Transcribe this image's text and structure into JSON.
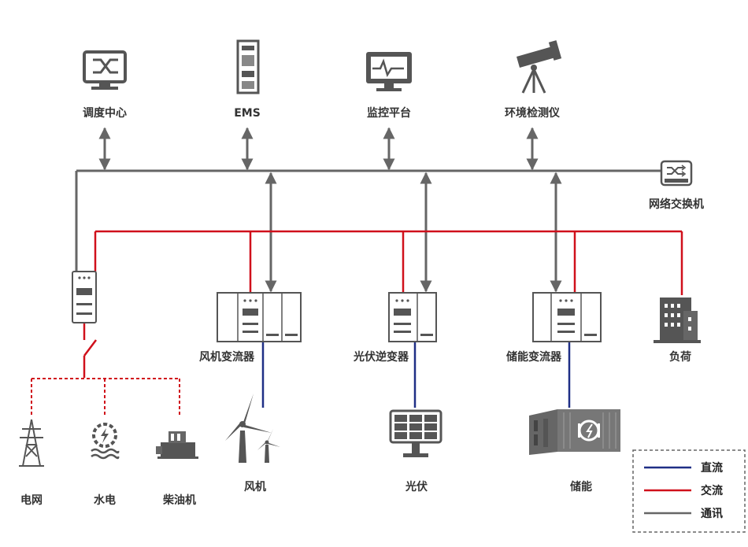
{
  "colors": {
    "dc": "#1f2f86",
    "ac": "#d0101b",
    "comm": "#666666"
  },
  "top_nodes": [
    {
      "label": "调度中心",
      "icon": "monitor-network-icon"
    },
    {
      "label": "EMS",
      "icon": "server-cabinet-icon"
    },
    {
      "label": "监控平台",
      "icon": "monitor-pulse-icon"
    },
    {
      "label": "环境检测仪",
      "icon": "telescope-icon"
    }
  ],
  "switch": {
    "label": "网络交换机",
    "icon": "network-switch-icon"
  },
  "converters": [
    {
      "label": "风机变流器",
      "icon": "converter-cabinet-icon"
    },
    {
      "label": "光伏逆变器",
      "icon": "inverter-cabinet-icon"
    },
    {
      "label": "储能变流器",
      "icon": "converter-cabinet-icon"
    }
  ],
  "load": {
    "label": "负荷",
    "icon": "building-icon"
  },
  "sources": [
    {
      "label": "电网",
      "icon": "transmission-tower-icon"
    },
    {
      "label": "水电",
      "icon": "hydro-turbine-icon"
    },
    {
      "label": "柴油机",
      "icon": "diesel-generator-icon"
    }
  ],
  "generation": [
    {
      "label": "风机",
      "icon": "wind-turbine-icon"
    },
    {
      "label": "光伏",
      "icon": "solar-panel-icon"
    },
    {
      "label": "储能",
      "icon": "battery-container-icon"
    }
  ],
  "legend": [
    {
      "label": "直流",
      "color": "#1f2f86"
    },
    {
      "label": "交流",
      "color": "#d0101b"
    },
    {
      "label": "通讯",
      "color": "#666666"
    }
  ]
}
